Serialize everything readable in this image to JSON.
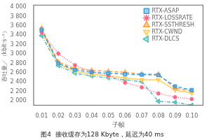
{
  "chart_data": {
    "type": "line",
    "title": "图4  接收缓存为128 Kbyte，延迟为40 ms",
    "xlabel": "子帧",
    "ylabel": "吞吐量／（kbit·s⁻¹）",
    "x": [
      0.01,
      0.02,
      0.03,
      0.04,
      0.05,
      0.06,
      0.07,
      0.08,
      0.09,
      0.1
    ],
    "series": [
      {
        "name": "RTX-ASAP",
        "marker": "square",
        "line_style": "dashed",
        "values": [
          3520,
          2800,
          2660,
          2610,
          2590,
          2570,
          2560,
          2550,
          2310,
          2230
        ]
      },
      {
        "name": "RTX-LOSSRATE",
        "marker": "star",
        "line_style": "dotted",
        "values": [
          3460,
          3010,
          2760,
          2620,
          2540,
          2390,
          2290,
          2160,
          2080,
          2040
        ]
      },
      {
        "name": "RTX-SSTHRESH",
        "marker": "triangle-up",
        "line_style": "dashed",
        "values": [
          3550,
          2830,
          2690,
          2650,
          2630,
          2610,
          2570,
          2570,
          2270,
          2210
        ]
      },
      {
        "name": "RTX-CWND",
        "marker": "triangle-down",
        "line_style": "solid",
        "values": [
          3480,
          2790,
          2630,
          2570,
          2530,
          2490,
          2450,
          2450,
          2230,
          2170
        ]
      },
      {
        "name": "RTX-DLCS",
        "marker": "triangle-left",
        "line_style": "dashdot",
        "values": [
          3390,
          2750,
          2590,
          2530,
          2490,
          2450,
          2410,
          1990,
          1970,
          1910
        ]
      }
    ],
    "xlim": [
      0.005,
      0.107
    ],
    "ylim": [
      1900,
      4050
    ],
    "xticks": [
      0.01,
      0.02,
      0.03,
      0.04,
      0.05,
      0.06,
      0.07,
      0.08,
      0.09,
      {
        "value": 0.1,
        "label": "0.10"
      }
    ],
    "yticks": [
      {
        "value": 2000,
        "label": "2 000"
      },
      {
        "value": 2200,
        "label": "2 200"
      },
      {
        "value": 2400,
        "label": "2 400"
      },
      {
        "value": 2600,
        "label": "2 600"
      },
      {
        "value": 2800,
        "label": "2 800"
      },
      {
        "value": 3000,
        "label": "3 000"
      },
      {
        "value": 3200,
        "label": "3 200"
      },
      {
        "value": 3400,
        "label": "3 400"
      },
      {
        "value": 3600,
        "label": "3 600"
      },
      {
        "value": 3800,
        "label": "3 800"
      },
      {
        "value": 4000,
        "label": "4 000"
      }
    ],
    "grid": false,
    "legend": "upper right"
  }
}
